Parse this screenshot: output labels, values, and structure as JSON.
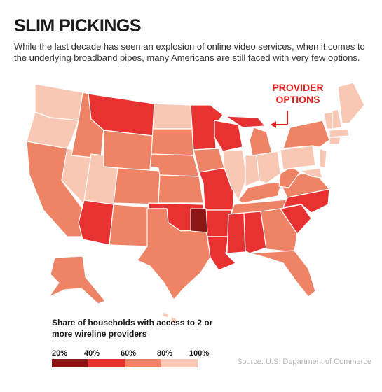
{
  "title": "SLIM PICKINGS",
  "subtitle": "While the last decade has seen an explosion of online video services, when it comes to the underlying broadband pipes, many Americans are still faced with very few options.",
  "callout": {
    "line1": "PROVIDER",
    "line2": "OPTIONS"
  },
  "legend": {
    "title": "Share of households with access to 2 or more wireline providers",
    "labels": [
      "20%",
      "40%",
      "60%",
      "80%",
      "100%"
    ],
    "colors": [
      "#8b1414",
      "#e83232",
      "#ee8465",
      "#f9c8b4"
    ]
  },
  "source": "Source: U.S. Department of Commerce"
}
